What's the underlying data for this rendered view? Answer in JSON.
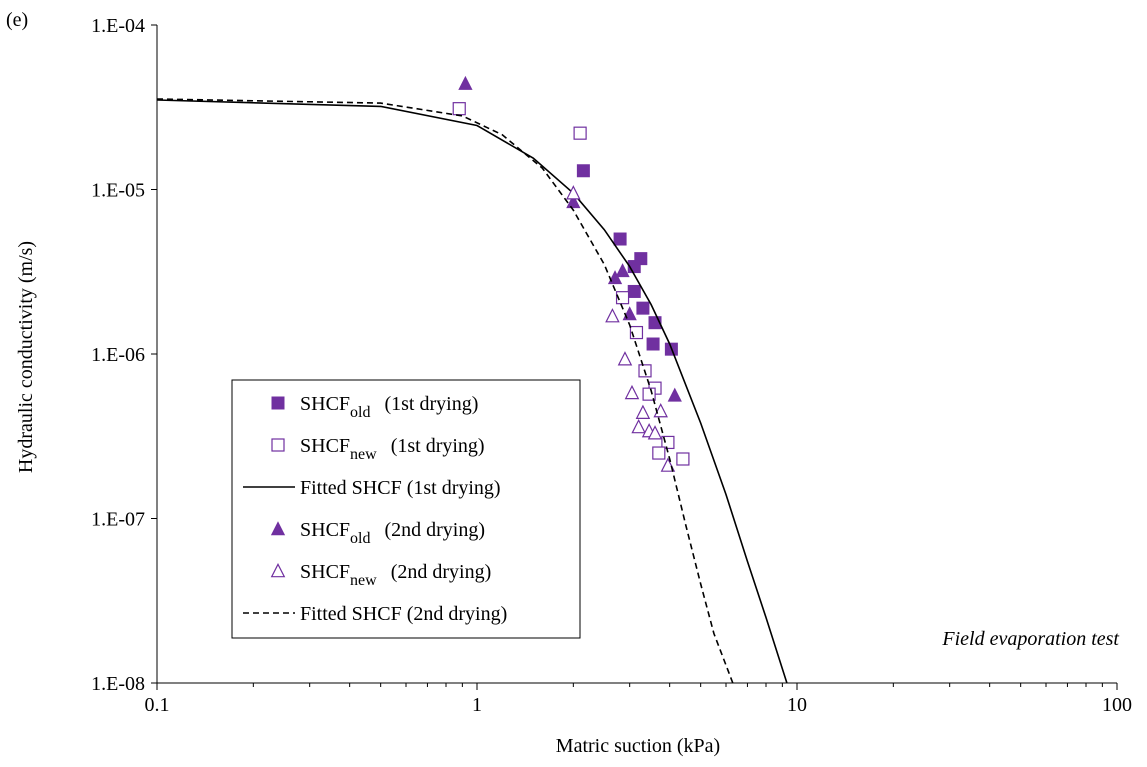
{
  "chart_data": {
    "type": "scatter",
    "panel_label": "(e)",
    "xlabel": "Matric suction (kPa)",
    "ylabel": "Hydraulic conductivity (m/s)",
    "x_scale": "log",
    "y_scale": "log",
    "xlim": [
      0.1,
      100
    ],
    "ylim": [
      1e-08,
      0.0001
    ],
    "x_ticks": [
      {
        "value": 0.1,
        "label": "0.1"
      },
      {
        "value": 1,
        "label": "1"
      },
      {
        "value": 10,
        "label": "10"
      },
      {
        "value": 100,
        "label": "100"
      }
    ],
    "y_ticks": [
      {
        "value": 1e-08,
        "label": "1.E-08"
      },
      {
        "value": 1e-07,
        "label": "1.E-07"
      },
      {
        "value": 1e-06,
        "label": "1.E-06"
      },
      {
        "value": 1e-05,
        "label": "1.E-05"
      },
      {
        "value": 0.0001,
        "label": "1.E-04"
      }
    ],
    "grid": false,
    "legend_position": "left",
    "annotation": "Field evaporation test",
    "marker_color": "#7030a0",
    "series": [
      {
        "legend_main": "SHCF",
        "legend_sub": "old",
        "legend_desc": "(1st drying)",
        "kind": "marker",
        "marker": "square-filled",
        "points": [
          [
            2.15,
            1.3e-05
          ],
          [
            2.8,
            5e-06
          ],
          [
            3.1,
            3.4e-06
          ],
          [
            3.25,
            3.8e-06
          ],
          [
            3.1,
            2.4e-06
          ],
          [
            3.3,
            1.9e-06
          ],
          [
            3.6,
            1.55e-06
          ],
          [
            3.55,
            1.15e-06
          ],
          [
            4.05,
            1.07e-06
          ]
        ]
      },
      {
        "legend_main": "SHCF",
        "legend_sub": "new",
        "legend_desc": "(1st drying)",
        "kind": "marker",
        "marker": "square-open",
        "points": [
          [
            0.88,
            3.1e-05
          ],
          [
            2.1,
            2.2e-05
          ],
          [
            2.85,
            2.2e-06
          ],
          [
            3.15,
            1.35e-06
          ],
          [
            3.35,
            7.9e-07
          ],
          [
            3.6,
            6.2e-07
          ],
          [
            3.45,
            5.7e-07
          ],
          [
            3.95,
            2.9e-07
          ],
          [
            3.7,
            2.5e-07
          ],
          [
            4.4,
            2.3e-07
          ]
        ]
      },
      {
        "legend_main": "Fitted SHCF (1st drying)",
        "legend_sub": "",
        "legend_desc": "",
        "kind": "line",
        "dash": "solid",
        "points": [
          [
            0.1,
            3.5e-05
          ],
          [
            0.5,
            3.2e-05
          ],
          [
            1.0,
            2.45e-05
          ],
          [
            1.5,
            1.55e-05
          ],
          [
            2.0,
            9.5e-06
          ],
          [
            2.5,
            5.7e-06
          ],
          [
            3.0,
            3.4e-06
          ],
          [
            3.5,
            2e-06
          ],
          [
            4.0,
            1.15e-06
          ],
          [
            5.0,
            3.8e-07
          ],
          [
            6.0,
            1.4e-07
          ],
          [
            7.0,
            5.5e-08
          ],
          [
            8.0,
            2.5e-08
          ],
          [
            9.3,
            1e-08
          ]
        ]
      },
      {
        "legend_main": "SHCF",
        "legend_sub": "old",
        "legend_desc": "(2nd drying)",
        "kind": "marker",
        "marker": "triangle-filled",
        "points": [
          [
            0.92,
            4.4e-05
          ],
          [
            2.0,
            8.4e-06
          ],
          [
            2.7,
            2.9e-06
          ],
          [
            2.85,
            3.2e-06
          ],
          [
            3.0,
            1.75e-06
          ],
          [
            4.15,
            5.6e-07
          ]
        ]
      },
      {
        "legend_main": "SHCF",
        "legend_sub": "new",
        "legend_desc": "(2nd drying)",
        "kind": "marker",
        "marker": "triangle-open",
        "points": [
          [
            2.0,
            9.5e-06
          ],
          [
            2.65,
            1.7e-06
          ],
          [
            2.9,
            9.3e-07
          ],
          [
            3.05,
            5.8e-07
          ],
          [
            3.3,
            4.4e-07
          ],
          [
            3.2,
            3.6e-07
          ],
          [
            3.45,
            3.4e-07
          ],
          [
            3.6,
            3.3e-07
          ],
          [
            3.75,
            4.5e-07
          ],
          [
            3.95,
            2.1e-07
          ]
        ]
      },
      {
        "legend_main": "Fitted SHCF (2nd drying)",
        "legend_sub": "",
        "legend_desc": "",
        "kind": "line",
        "dash": "dashed",
        "points": [
          [
            0.1,
            3.55e-05
          ],
          [
            0.5,
            3.35e-05
          ],
          [
            0.9,
            2.8e-05
          ],
          [
            1.2,
            2.15e-05
          ],
          [
            1.6,
            1.35e-05
          ],
          [
            2.0,
            7.5e-06
          ],
          [
            2.5,
            3.5e-06
          ],
          [
            3.0,
            1.5e-06
          ],
          [
            3.5,
            6e-07
          ],
          [
            4.0,
            2.3e-07
          ],
          [
            4.5,
            9e-08
          ],
          [
            5.0,
            4e-08
          ],
          [
            5.5,
            2e-08
          ],
          [
            6.3,
            1e-08
          ]
        ]
      }
    ]
  }
}
